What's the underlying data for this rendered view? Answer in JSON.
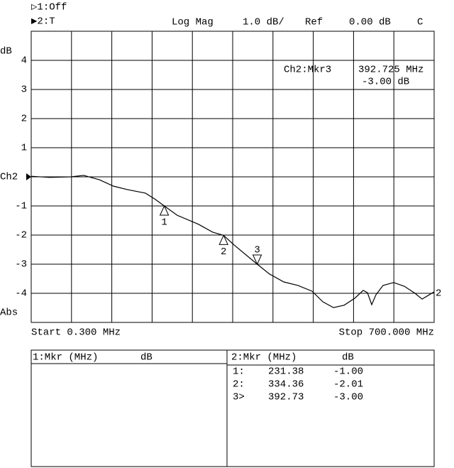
{
  "header": {
    "ch1": "▷1:Off",
    "ch2": "▶2:T",
    "format": "Log Mag",
    "scale": "1.0 dB/",
    "ref_label": "Ref",
    "ref_value": "0.00 dB",
    "flag": "C"
  },
  "readout": {
    "marker": "Ch2:Mkr3",
    "freq": "392.725 MHz",
    "value": "-3.00 dB"
  },
  "chart_data": {
    "type": "line",
    "y_unit": "dB",
    "y_format": "Abs",
    "ref_marker": "Ch2",
    "start": "Start 0.300 MHz",
    "stop": "Stop 700.000 MHz",
    "trace_label": "2",
    "xlim": [
      0.3,
      700
    ],
    "ylim": [
      -5,
      5
    ],
    "yticks": [
      -4,
      -3,
      -2,
      -1,
      1,
      2,
      3,
      4
    ],
    "color": "#000000",
    "x": [
      0.3,
      32.3,
      69.3,
      91.5,
      118.6,
      143.2,
      167.8,
      198.6,
      214.7,
      231.38,
      253.8,
      290.8,
      315.4,
      334.36,
      352.6,
      392.73,
      414.2,
      438.9,
      463.5,
      488.1,
      506.6,
      525.1,
      543.6,
      562.1,
      576.8,
      584.2,
      591.6,
      599.0,
      611.3,
      629.8,
      648.3,
      666.8,
      679.1,
      700
    ],
    "series": [
      {
        "name": "2",
        "values": [
          0.02,
          -0.02,
          0,
          0.05,
          -0.1,
          -0.32,
          -0.44,
          -0.56,
          -0.76,
          -1.0,
          -1.32,
          -1.63,
          -1.9,
          -2.01,
          -2.34,
          -3.0,
          -3.34,
          -3.61,
          -3.73,
          -3.93,
          -4.29,
          -4.49,
          -4.41,
          -4.17,
          -3.9,
          -3.98,
          -4.39,
          -4.05,
          -3.73,
          -3.63,
          -3.76,
          -4.0,
          -4.2,
          -3.95
        ]
      }
    ],
    "markers": [
      {
        "label": "1",
        "x": 231.38,
        "value": -1.0
      },
      {
        "label": "2",
        "x": 334.36,
        "value": -2.01
      },
      {
        "label": "3",
        "x": 392.73,
        "value": -3.0
      }
    ]
  },
  "table": {
    "left": {
      "title": "1:Mkr (MHz)",
      "unit": "dB"
    },
    "right": {
      "title": "2:Mkr (MHz)",
      "unit": "dB",
      "rows": [
        [
          "1:",
          "231.38",
          "-1.00"
        ],
        [
          "2:",
          "334.36",
          "-2.01"
        ],
        [
          "3>",
          "392.73",
          "-3.00"
        ]
      ]
    }
  }
}
